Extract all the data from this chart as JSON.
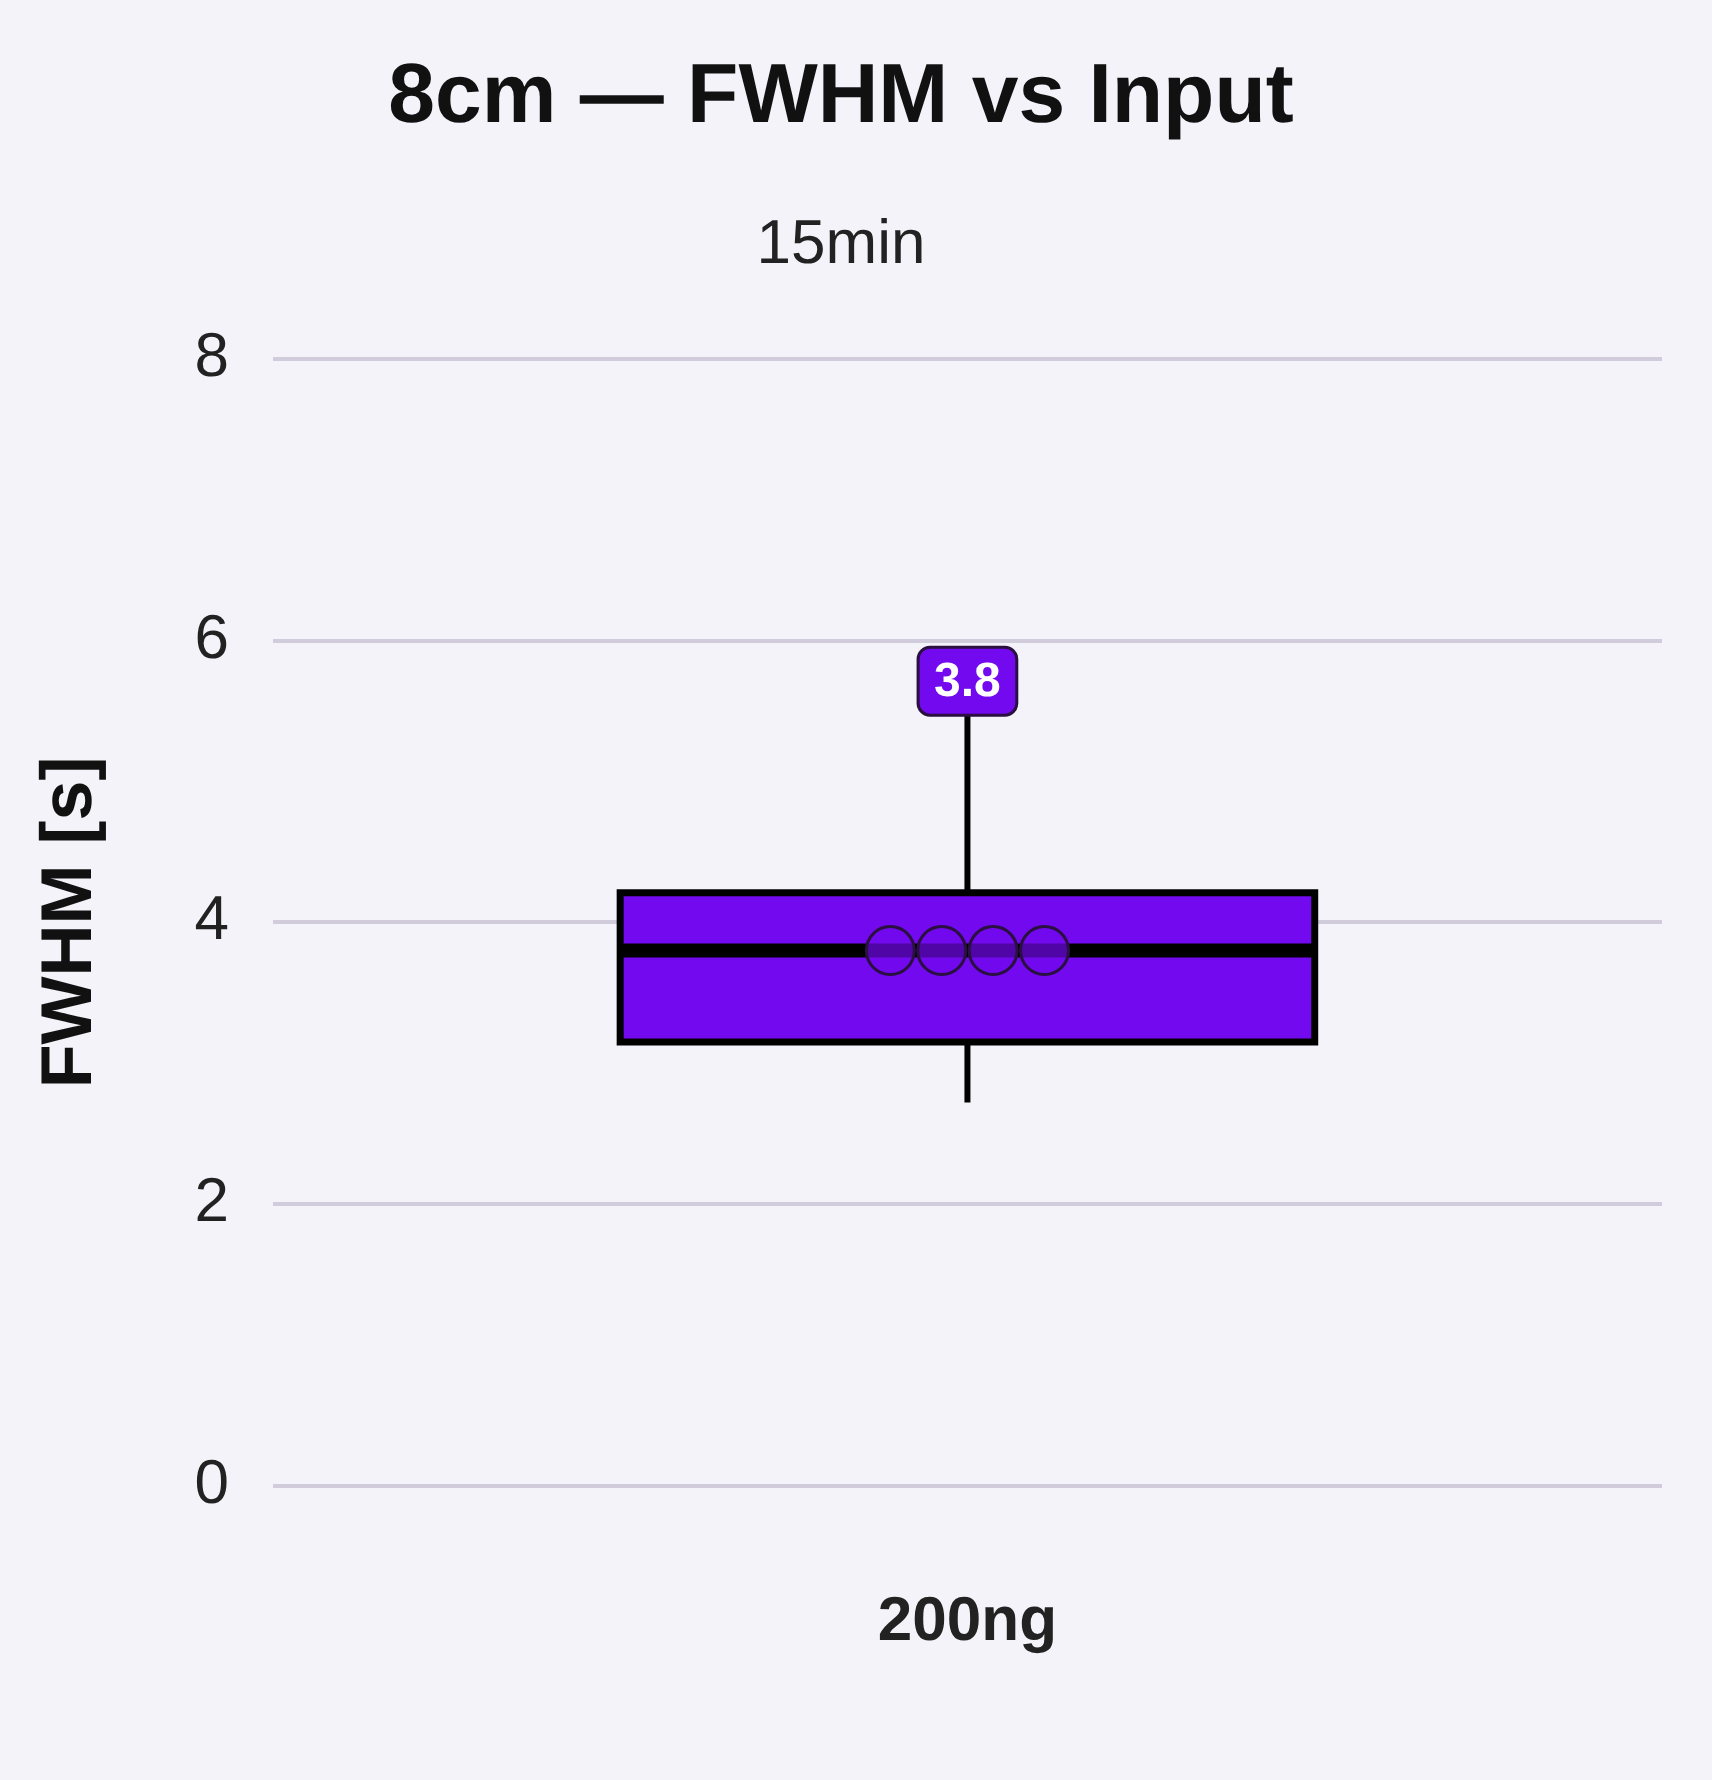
{
  "chart_data": {
    "type": "box",
    "title": "8cm — FWHM vs Input",
    "subtitle": "15min",
    "ylabel": "FWHM [s]",
    "categories": [
      "200ng"
    ],
    "series": [
      {
        "type": "box",
        "color": "#7209ee",
        "boxes": [
          {
            "low": 2.72,
            "q1": 3.15,
            "median": 3.8,
            "q3": 4.21,
            "high": 5.5
          }
        ]
      },
      {
        "type": "scatter",
        "color": "#7209ee",
        "x": [
          "200ng",
          "200ng",
          "200ng",
          "200ng"
        ],
        "values": [
          3.8,
          3.8,
          3.8,
          3.8
        ]
      }
    ],
    "annotations": [
      "3.8"
    ],
    "ylim": [
      0,
      8
    ],
    "yticks": [
      0,
      2,
      4,
      6,
      8
    ],
    "grid": "y",
    "marker": "circle"
  }
}
